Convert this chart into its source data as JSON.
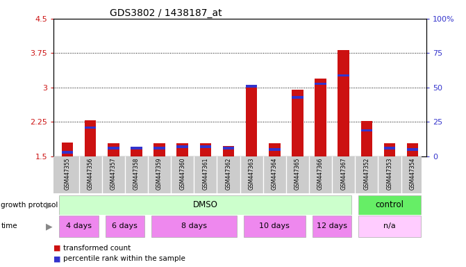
{
  "title": "GDS3802 / 1438187_at",
  "samples": [
    "GSM447355",
    "GSM447356",
    "GSM447357",
    "GSM447358",
    "GSM447359",
    "GSM447360",
    "GSM447361",
    "GSM447362",
    "GSM447363",
    "GSM447364",
    "GSM447365",
    "GSM447366",
    "GSM447367",
    "GSM447352",
    "GSM447353",
    "GSM447354"
  ],
  "red_values": [
    1.8,
    2.28,
    1.78,
    1.7,
    1.78,
    1.78,
    1.78,
    1.72,
    3.0,
    1.78,
    2.95,
    3.2,
    3.82,
    2.27,
    1.78,
    1.78
  ],
  "blue_pct": [
    2,
    20,
    5,
    5,
    5,
    6,
    6,
    5,
    50,
    4,
    42,
    52,
    58,
    18,
    5,
    4
  ],
  "ylim_left": [
    1.5,
    4.5
  ],
  "ylim_right": [
    0,
    100
  ],
  "yticks_left": [
    1.5,
    2.25,
    3.0,
    3.75,
    4.5
  ],
  "yticks_left_labels": [
    "1.5",
    "2.25",
    "3",
    "3.75",
    "4.5"
  ],
  "yticks_right": [
    0,
    25,
    50,
    75,
    100
  ],
  "yticks_right_labels": [
    "0",
    "25",
    "50",
    "75",
    "100%"
  ],
  "bar_width": 0.5,
  "red_color": "#cc1111",
  "blue_color": "#3333cc",
  "bg_color": "#ffffff",
  "plot_bg": "#ffffff",
  "growth_protocol_label": "growth protocol",
  "time_label": "time",
  "dmso_color": "#ccffcc",
  "control_color": "#66ee66",
  "time_color_alt": "#ee88ee",
  "time_color_na": "#ffccff",
  "legend_red": "transformed count",
  "legend_blue": "percentile rank within the sample",
  "label_bg": "#cccccc",
  "arrow_color": "#888888",
  "time_groups": [
    {
      "label": "4 days",
      "start": 0,
      "end": 1
    },
    {
      "label": "6 days",
      "start": 2,
      "end": 3
    },
    {
      "label": "8 days",
      "start": 4,
      "end": 7
    },
    {
      "label": "10 days",
      "start": 8,
      "end": 10
    },
    {
      "label": "12 days",
      "start": 11,
      "end": 12
    },
    {
      "label": "n/a",
      "start": 13,
      "end": 15
    }
  ]
}
